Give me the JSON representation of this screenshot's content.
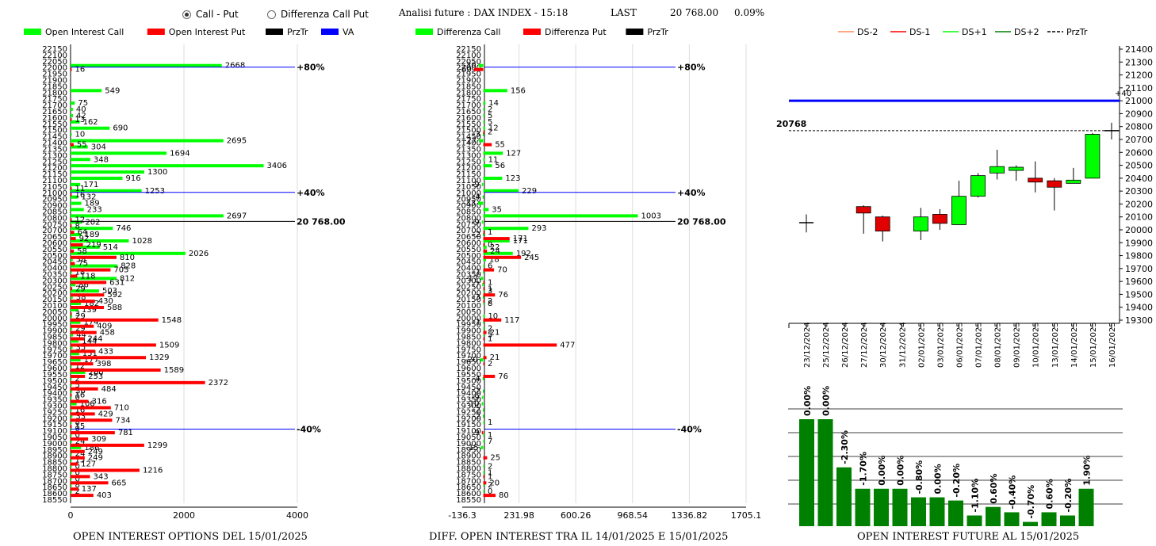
{
  "header": {
    "radio_options": [
      {
        "label": "Call - Put",
        "selected": true
      },
      {
        "label": "Differenza Call Put",
        "selected": false
      }
    ],
    "title": "Analisi future : DAX INDEX - 15:18",
    "last_label": "LAST",
    "last_value": "20 768.00",
    "change": "0.09%"
  },
  "colors": {
    "call": "#00ff00",
    "put": "#ff0000",
    "prztr": "#000000",
    "va": "#0000ff",
    "future_bar": "#008000"
  },
  "footers": {
    "left": "OPEN INTEREST OPTIONS DEL 15/01/2025",
    "middle": "DIFF. OPEN INTEREST TRA IL 14/01/2025 E 15/01/2025",
    "right": "OPEN INTEREST FUTURE AL 15/01/2025"
  },
  "chart_data": [
    {
      "type": "bar",
      "orientation": "horizontal",
      "legend": [
        "Open Interest Call",
        "Open Interest Put",
        "PrzTr",
        "VA"
      ],
      "categories": [
        22150,
        22100,
        22050,
        22000,
        21950,
        21900,
        21850,
        21800,
        21750,
        21700,
        21650,
        21600,
        21550,
        21500,
        21450,
        21400,
        21350,
        21300,
        21250,
        21200,
        21150,
        21100,
        21050,
        21000,
        20950,
        20900,
        20850,
        20800,
        20750,
        20700,
        20650,
        20600,
        20550,
        20500,
        20450,
        20400,
        20350,
        20300,
        20250,
        20200,
        20150,
        20100,
        20050,
        20000,
        19950,
        19900,
        19850,
        19800,
        19750,
        19700,
        19650,
        19600,
        19550,
        19500,
        19450,
        19400,
        19350,
        19300,
        19250,
        19200,
        19150,
        19100,
        19050,
        19000,
        18950,
        18900,
        18850,
        18800,
        18750,
        18700,
        18650,
        18600,
        18550
      ],
      "call": {
        "22000": 2668,
        "21800": 549,
        "21700": 75,
        "21650": 40,
        "21600": 42,
        "21550": 162,
        "21500": 690,
        "21450": 10,
        "21400": 2695,
        "21350": 304,
        "21300": 1694,
        "21250": 348,
        "21200": 3406,
        "21150": 1300,
        "21100": 916,
        "21050": 171,
        "21000": 1253,
        "20950": 132,
        "20900": 189,
        "20850": 233,
        "20800": 2697,
        "20750": 202,
        "20700": 746,
        "20650": 189,
        "20600": 1028,
        "20550": 514,
        "20500": 2026,
        "20450": 38,
        "20400": 828,
        "20350": 18,
        "20300": 812,
        "20250": 86,
        "20200": 503,
        "20150": 38,
        "20100": 182,
        "20050": 139,
        "20000": 29,
        "19950": 174,
        "19900": 29,
        "19850": 44,
        "19800": 144,
        "19750": 35,
        "19700": 151,
        "19650": 177,
        "19600": 12,
        "19550": 260,
        "19500": 2,
        "19450": 5,
        "19400": 30,
        "19350": 0,
        "19300": 106,
        "19250": 16,
        "19200": 33,
        "19150": 8,
        "19100": 0,
        "19050": 0,
        "19000": 24,
        "18950": 186,
        "18900": 24,
        "18850": 15,
        "18800": 0,
        "18750": 0,
        "18700": 0,
        "18650": 8,
        "18600": 2
      },
      "put": {
        "22000": 16,
        "21600": 13,
        "21400": 55,
        "21050": 11,
        "21000": 16,
        "20800": 12,
        "20750": 8,
        "20700": 64,
        "20650": 92,
        "20600": 219,
        "20550": 58,
        "20500": 810,
        "20450": 75,
        "20400": 705,
        "20350": 118,
        "20300": 631,
        "20250": 29,
        "20200": 592,
        "20150": 430,
        "20100": 588,
        "20050": 3,
        "20000": 1548,
        "19950": 409,
        "19900": 458,
        "19850": 244,
        "19800": 1509,
        "19750": 433,
        "19700": 1329,
        "19650": 398,
        "19600": 1589,
        "19550": 253,
        "19500": 2372,
        "19450": 484,
        "19400": 16,
        "19350": 316,
        "19300": 710,
        "19250": 429,
        "19200": 734,
        "19150": 15,
        "19100": 781,
        "19050": 309,
        "19000": 1299,
        "18950": 249,
        "18900": 249,
        "18850": 127,
        "18800": 1216,
        "18750": 343,
        "18700": 665,
        "18650": 137,
        "18600": 403
      },
      "xlim": [
        0,
        4000
      ],
      "xticks": [
        "0",
        "2000",
        "4000"
      ],
      "lines": [
        {
          "strike": 22000,
          "label": "+80%",
          "color": "#0000ff"
        },
        {
          "strike": 21000,
          "label": "+40%",
          "color": "#0000ff"
        },
        {
          "strike": 20768,
          "label": "20 768.00",
          "color": "#000000"
        },
        {
          "strike": 19110,
          "label": "-40%",
          "color": "#0000ff"
        }
      ]
    },
    {
      "type": "bar",
      "orientation": "horizontal",
      "legend": [
        "Differenza Call",
        "Differenza Put",
        "PrzTr"
      ],
      "categories": [
        22150,
        22100,
        22050,
        22000,
        21950,
        21900,
        21850,
        21800,
        21750,
        21700,
        21650,
        21600,
        21550,
        21500,
        21450,
        21400,
        21350,
        21300,
        21250,
        21200,
        21150,
        21100,
        21050,
        21000,
        20950,
        20900,
        20850,
        20800,
        20750,
        20700,
        20650,
        20600,
        20550,
        20500,
        20450,
        20400,
        20350,
        20300,
        20250,
        20200,
        20150,
        20100,
        20050,
        20000,
        19950,
        19900,
        19850,
        19800,
        19750,
        19700,
        19650,
        19600,
        19550,
        19500,
        19450,
        19400,
        19350,
        19300,
        19250,
        19200,
        19150,
        19100,
        19050,
        19000,
        18950,
        18900,
        18850,
        18800,
        18750,
        18700,
        18650,
        18600,
        18550
      ],
      "call": {
        "22000": -30,
        "21800": 156,
        "21700": 14,
        "21650": 2,
        "21600": 5,
        "21550": 5,
        "21500": 12,
        "21450": -3,
        "21400": -27,
        "21300": 127,
        "21250": 11,
        "21200": 56,
        "21100": 123,
        "21050": -9,
        "21000": 229,
        "20950": -4,
        "20900": -33,
        "20850": 35,
        "20800": 1003,
        "20750": -9,
        "20700": 293,
        "20650": -2,
        "20600": 171,
        "20550": 22,
        "20500": 192,
        "20450": 18,
        "20400": 6,
        "20350": -1,
        "20300": -17,
        "20250": -7,
        "20200": 3,
        "20150": -3,
        "20100": 8,
        "20000": 10,
        "19950": -1,
        "19900": 2,
        "19850": 5,
        "19650": -20,
        "19500": -4,
        "19400": -2,
        "19350": -9,
        "19300": -10,
        "19250": -2,
        "19200": -2,
        "19150": 1,
        "19050": 1,
        "19000": 7,
        "18950": -15,
        "18800": 2,
        "18750": 1,
        "18650": 2,
        "18600": 0
      },
      "put": {
        "22000": -60,
        "21500": 2,
        "21400": 55,
        "20700": 1,
        "20650": 171,
        "20600": 0,
        "20550": 24,
        "20500": 245,
        "20400": 70,
        "20300": 1,
        "20250": 1,
        "20200": 76,
        "20150": 2,
        "20000": 117,
        "19900": 21,
        "19850": 1,
        "19800": 477,
        "19700": 21,
        "19650": 2,
        "19550": 76,
        "19100": -9,
        "18900": 25,
        "18750": 1,
        "18700": 20,
        "18600": 80
      },
      "xlim": [
        -136.3,
        1705.1
      ],
      "xticks": [
        "-136.3",
        "231.98",
        "600.26",
        "968.54",
        "1336.82",
        "1705.1"
      ],
      "lines": [
        {
          "strike": 22000,
          "label": "+80%",
          "color": "#0000ff"
        },
        {
          "strike": 21000,
          "label": "+40%",
          "color": "#0000ff"
        },
        {
          "strike": 20768,
          "label": "20 768.00",
          "color": "#000000"
        },
        {
          "strike": 19110,
          "label": "-40%",
          "color": "#0000ff"
        }
      ]
    },
    {
      "type": "candlestick",
      "legend": [
        "DS-2",
        "DS-1",
        "DS+1",
        "DS+2",
        "PrzTr"
      ],
      "legend_colors": [
        "#ff8c5a",
        "#ff0000",
        "#00ff00",
        "#008000",
        "#000000"
      ],
      "ylim": [
        19300,
        21400
      ],
      "yticks": [
        21400,
        21300,
        21200,
        21100,
        21000,
        20900,
        20800,
        20700,
        20600,
        20500,
        20400,
        20300,
        20200,
        20100,
        20000,
        19900,
        19800,
        19700,
        19600,
        19500,
        19400,
        19300
      ],
      "dates": [
        "23/12/2024",
        "25/12/2024",
        "26/12/2024",
        "27/12/2024",
        "30/12/2024",
        "31/12/2024",
        "02/01/2025",
        "03/01/2025",
        "06/01/2025",
        "07/01/2025",
        "08/01/2025",
        "09/01/2025",
        "10/01/2025",
        "13/01/2025",
        "14/01/2025",
        "15/01/2025",
        "16/01/2025"
      ],
      "candles": [
        {
          "d": "23/12/2024",
          "o": 20055,
          "c": 20055,
          "h": 20120,
          "l": 19980
        },
        {
          "d": "27/12/2024",
          "o": 20180,
          "c": 20130,
          "h": 20190,
          "l": 19970
        },
        {
          "d": "30/12/2024",
          "o": 20100,
          "c": 19990,
          "h": 20110,
          "l": 19910
        },
        {
          "d": "02/01/2025",
          "o": 19990,
          "c": 20100,
          "h": 20170,
          "l": 19920
        },
        {
          "d": "03/01/2025",
          "o": 20120,
          "c": 20050,
          "h": 20160,
          "l": 20000
        },
        {
          "d": "06/01/2025",
          "o": 20040,
          "c": 20260,
          "h": 20380,
          "l": 20040
        },
        {
          "d": "07/01/2025",
          "o": 20260,
          "c": 20420,
          "h": 20440,
          "l": 20250
        },
        {
          "d": "08/01/2025",
          "o": 20440,
          "c": 20490,
          "h": 20620,
          "l": 20390
        },
        {
          "d": "09/01/2025",
          "o": 20460,
          "c": 20485,
          "h": 20500,
          "l": 20380
        },
        {
          "d": "10/01/2025",
          "o": 20400,
          "c": 20370,
          "h": 20530,
          "l": 20290
        },
        {
          "d": "13/01/2025",
          "o": 20380,
          "c": 20330,
          "h": 20400,
          "l": 20150
        },
        {
          "d": "14/01/2025",
          "o": 20360,
          "c": 20385,
          "h": 20480,
          "l": 20360
        },
        {
          "d": "15/01/2025",
          "o": 20400,
          "c": 20740,
          "h": 20750,
          "l": 20400
        },
        {
          "d": "16/01/2025",
          "o": 20768,
          "c": 20768,
          "h": 20830,
          "l": 20700
        }
      ],
      "hlines": [
        {
          "y": 21000,
          "label": "+40",
          "color": "#0000ff"
        },
        {
          "y": 20768,
          "label": "20768",
          "color": "#000000"
        }
      ]
    },
    {
      "type": "bar",
      "categories": [
        "23/12/2024",
        "25/12/2024",
        "26/12/2024",
        "27/12/2024",
        "30/12/2024",
        "31/12/2024",
        "02/01/2025",
        "03/01/2025",
        "06/01/2025",
        "07/01/2025",
        "08/01/2025",
        "09/01/2025",
        "10/01/2025",
        "13/01/2025",
        "14/01/2025",
        "15/01/2025"
      ],
      "labels": [
        "0.00%",
        "0.00%",
        "-2.30%",
        "-1.70%",
        "0.00%",
        "0.00%",
        "-0.80%",
        "0.00%",
        "-0.20%",
        "-1.10%",
        "0.60%",
        "-0.40%",
        "-0.70%",
        "0.60%",
        "-0.20%",
        "1.90%"
      ],
      "heights": [
        100,
        100,
        55,
        35,
        35,
        35,
        27,
        27,
        24,
        10,
        18,
        13,
        4,
        13,
        10,
        35
      ]
    }
  ]
}
